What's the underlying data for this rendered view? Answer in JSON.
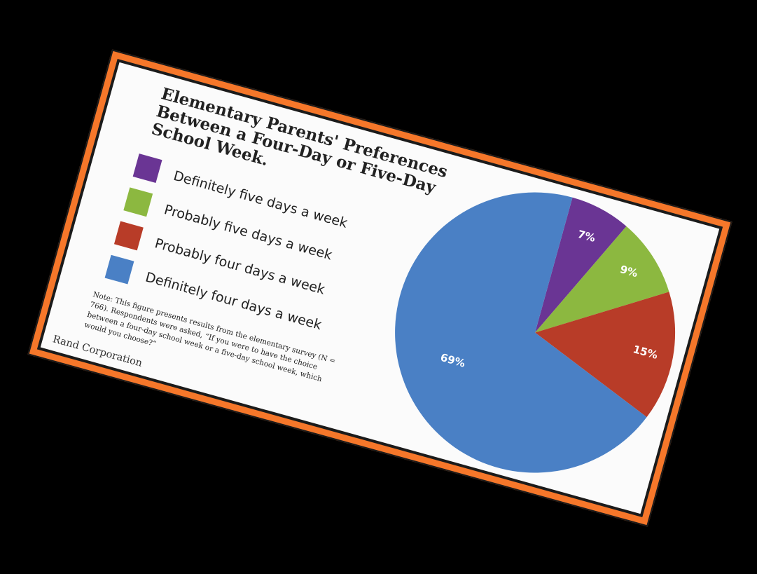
{
  "chart_data": {
    "type": "pie",
    "title": "Elementary Parents' Preferences Between a Four-Day or Five-Day School Week.",
    "categories": [
      "Definitely five days a week",
      "Probably five days a week",
      "Probably four days a week",
      "Definitely four days a week"
    ],
    "values": [
      7,
      9,
      15,
      69
    ],
    "value_labels": [
      "7%",
      "9%",
      "15%",
      "69%"
    ],
    "colors": [
      "#6a3594",
      "#8cb840",
      "#b83c28",
      "#4a80c5"
    ],
    "legend_position": "left"
  },
  "note": "Note: This figure presents results from the elementary survey (N = 766). Respondents were asked, “If you were to have the choice between a four-day school week or a five-day school week, which would you choose?”",
  "source": "Rand Corporation",
  "colors": {
    "frame": "#f6772a",
    "card_background": "#fbfbfb"
  }
}
